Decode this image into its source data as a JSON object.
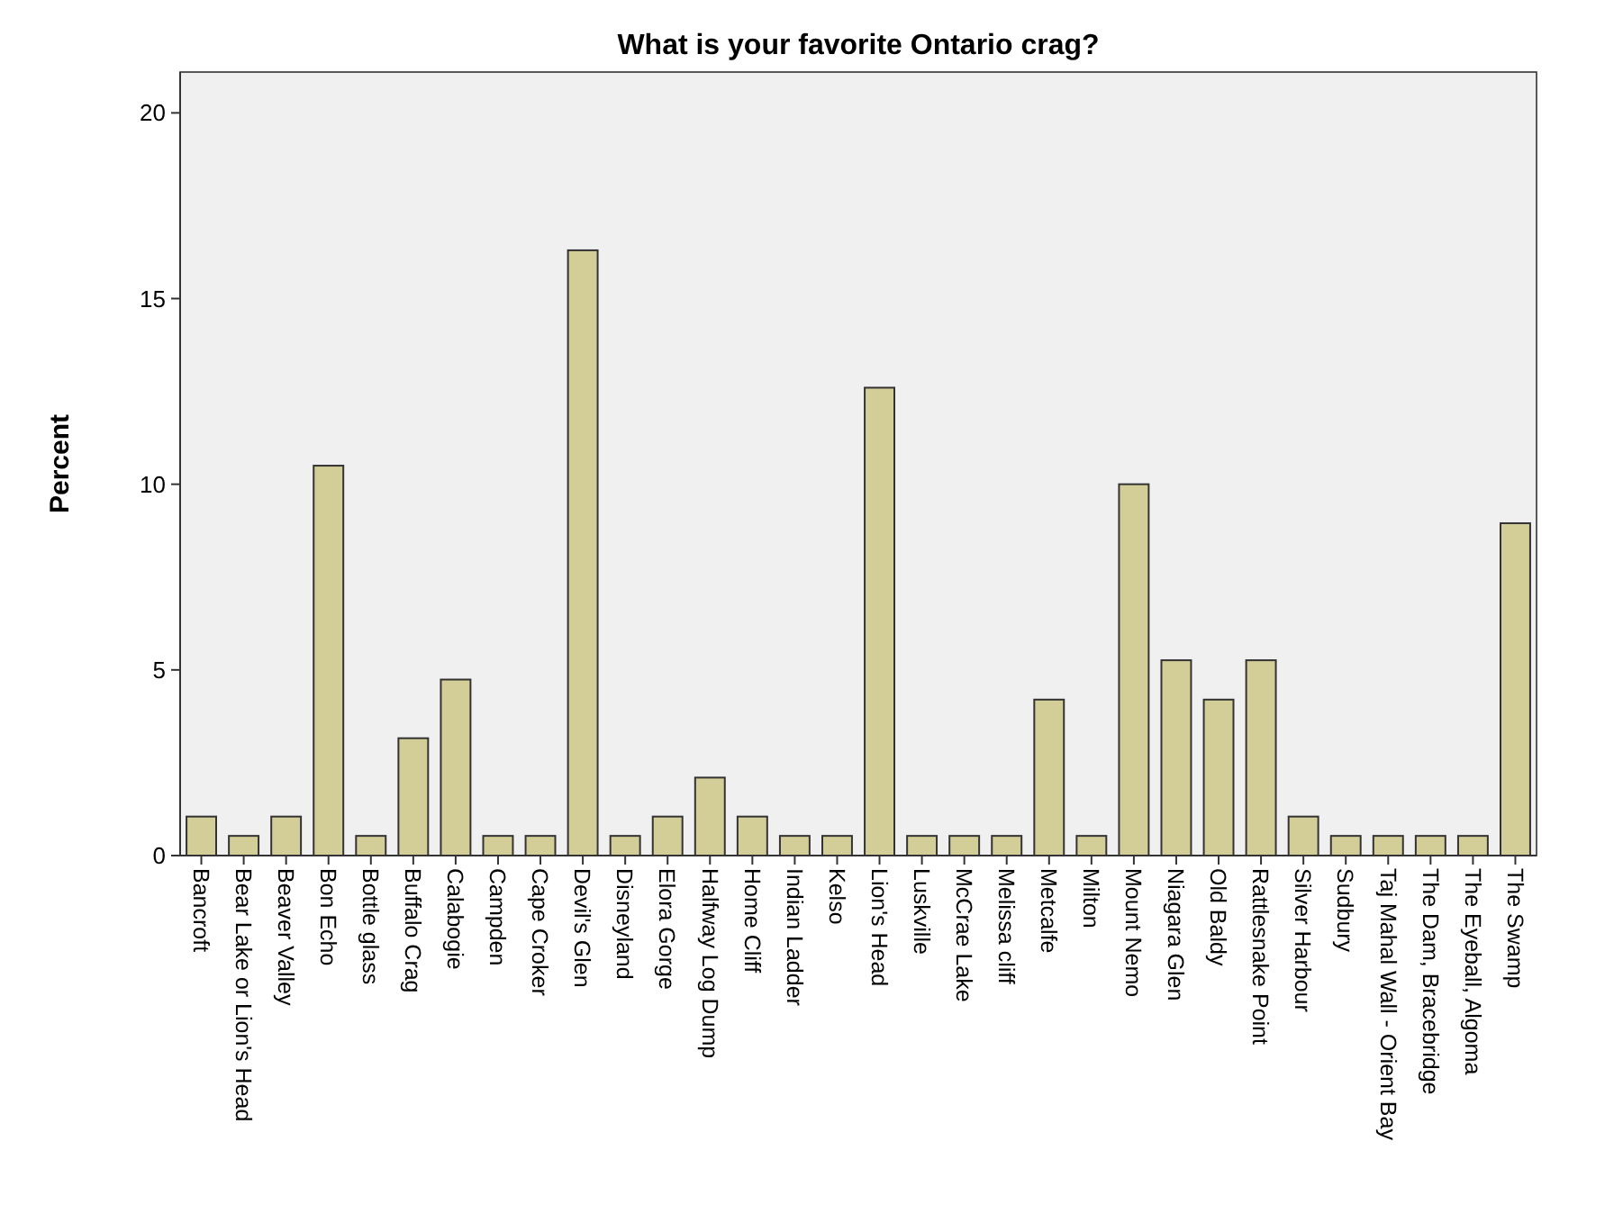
{
  "chart_data": {
    "type": "bar",
    "title": "What is your favorite Ontario crag?",
    "ylabel": "Percent",
    "categories": [
      "Bancroft",
      "Bear Lake or Lion's Head",
      "Beaver Valley",
      "Bon Echo",
      "Bottle glass",
      "Buffalo Crag",
      "Calabogie",
      "Campden",
      "Cape Croker",
      "Devil's Glen",
      "Disneyland",
      "Elora Gorge",
      "Halfway Log Dump",
      "Home Cliff",
      "Indian Ladder",
      "Kelso",
      "Lion's Head",
      "Luskville",
      "McCrae Lake",
      "Melissa cliff",
      "Metcalfe",
      "Milton",
      "Mount Nemo",
      "Niagara Glen",
      "Old Baldy",
      "Rattlesnake Point",
      "Silver Harbour",
      "Sudbury",
      "Taj Mahal Wall - Orient Bay",
      "The Dam, Bracebridge",
      "The Eyeball, Algoma",
      "The Swamp"
    ],
    "values": [
      1.05,
      0.53,
      1.05,
      10.5,
      0.53,
      3.16,
      4.74,
      0.53,
      0.53,
      16.3,
      0.53,
      1.05,
      2.1,
      1.05,
      0.53,
      0.53,
      12.6,
      0.53,
      0.53,
      0.53,
      4.2,
      0.53,
      10.0,
      5.26,
      4.2,
      5.26,
      1.05,
      0.53,
      0.53,
      0.53,
      0.53,
      8.95
    ],
    "color": "#d3ce97",
    "ylim": [
      0,
      21.1
    ],
    "yticks": [
      0,
      5,
      10,
      15,
      20
    ],
    "grid": false
  }
}
